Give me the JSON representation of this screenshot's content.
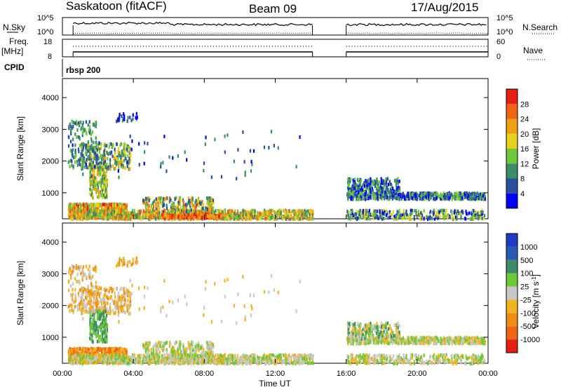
{
  "header": {
    "station": "Saskatoon (fitACF)",
    "beam": "Beam 09",
    "date": "17/Aug/2015"
  },
  "top_panels": {
    "nsky_label": "N.Sky",
    "nsearch_label": "N.Search",
    "freq_label": "Freq.",
    "freq_unit": "[MHz]",
    "nave_label": "Nave",
    "cpid_label": "CPID",
    "cpid_value": "rbsp 200",
    "left_ticks_top": [
      "10^5",
      "10^0"
    ],
    "right_ticks_top": [
      "10^5",
      "10^0"
    ],
    "left_ticks_freq": [
      "18",
      "8"
    ],
    "right_ticks_nave": [
      "60",
      "0"
    ]
  },
  "chart_data": [
    {
      "type": "heatmap",
      "name": "power",
      "ylabel": "Slant Range [km]",
      "xlabel": "",
      "ylim": [
        180,
        4600
      ],
      "xlim": [
        0,
        24
      ],
      "yticks": [
        "1000",
        "2000",
        "3000",
        "4000"
      ],
      "colorbar_label": "Power [dB]",
      "colorbar_ticks": [
        "4",
        "8",
        "12",
        "16",
        "20",
        "24",
        "28"
      ],
      "colorbar_colors": [
        "#0000ff",
        "#2a4fa0",
        "#3c8c6a",
        "#6ec83a",
        "#e6d21e",
        "#f0a014",
        "#f06414",
        "#e61e14"
      ],
      "data_gap_hours": [
        14.1,
        16.0
      ]
    },
    {
      "type": "heatmap",
      "name": "velocity",
      "ylabel": "Slant Range [km]",
      "xlabel": "Time UT",
      "ylim": [
        180,
        4600
      ],
      "xlim": [
        0,
        24
      ],
      "yticks": [
        "1000",
        "2000",
        "3000",
        "4000"
      ],
      "xticks": [
        "00:00",
        "04:00",
        "08:00",
        "12:00",
        "16:00",
        "20:00",
        "00:00"
      ],
      "colorbar_label": "Velocity [m s",
      "colorbar_exponent": "-1",
      "colorbar_ticks": [
        "1000",
        "500",
        "100",
        "25",
        "-25",
        "-100",
        "-500",
        "-1000"
      ],
      "colorbar_colors": [
        "#1e3cc8",
        "#2a5ab4",
        "#3c8c6a",
        "#6ec83a",
        "#c8c8c8",
        "#f0b41e",
        "#f08c14",
        "#f06414",
        "#e61e14"
      ],
      "data_gap_hours": [
        14.1,
        16.0
      ]
    }
  ]
}
